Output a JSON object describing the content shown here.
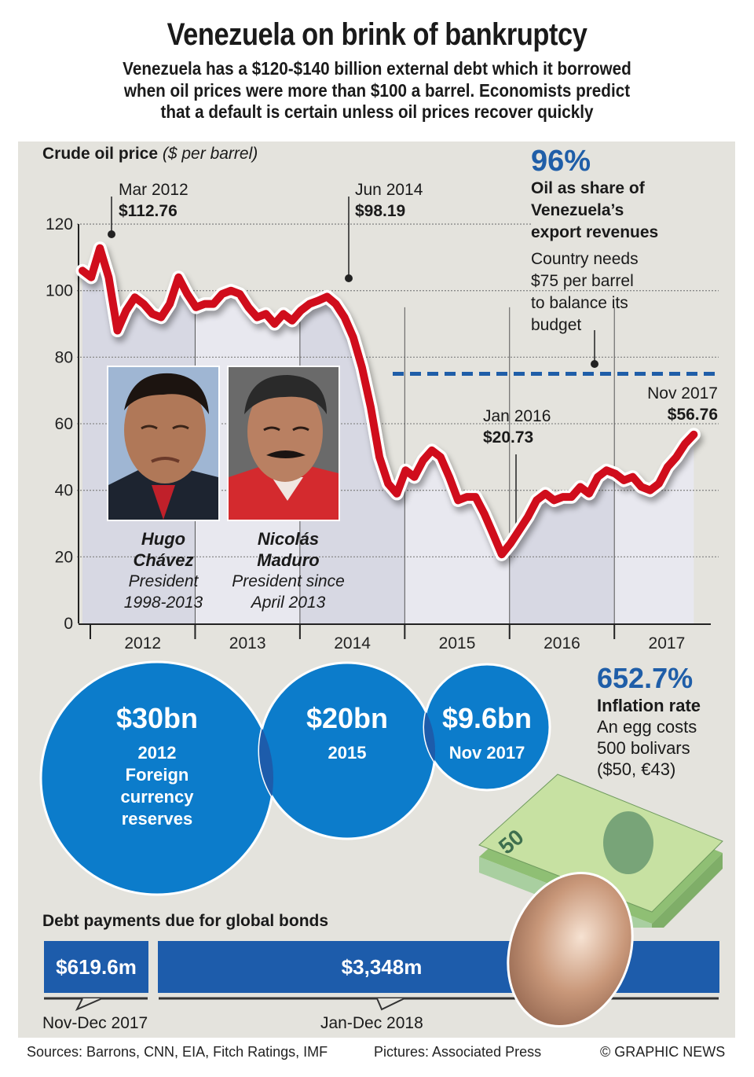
{
  "header": {
    "title": "Venezuela on brink of bankruptcy",
    "subtitle_lines": [
      "Venezuela has a $120-$140 billion external debt which it borrowed",
      "when oil prices were more than $100 a barrel. Economists predict",
      "that a default is certain unless oil prices recover quickly"
    ]
  },
  "chart_data": {
    "type": "line",
    "title": "Crude oil price",
    "title_units": "($ per barrel)",
    "xlabel": "",
    "ylabel": "",
    "ylim": [
      0,
      120
    ],
    "yticks": [
      0,
      20,
      40,
      60,
      80,
      100,
      120
    ],
    "grid": true,
    "x_categories": [
      "2012",
      "2013",
      "2014",
      "2015",
      "2016",
      "2017"
    ],
    "x_start": "Jan 2012",
    "x_end": "Nov 2017",
    "frequency": "monthly",
    "series": [
      {
        "name": "Crude oil price",
        "color": "#d0101a",
        "values": [
          106,
          104,
          112.76,
          104,
          88,
          94,
          98,
          96,
          93,
          92,
          96,
          104,
          99,
          95,
          96,
          96,
          99,
          100,
          99,
          95,
          92,
          93,
          90,
          93,
          91,
          94,
          96,
          97,
          98.19,
          96,
          92,
          86,
          77,
          65,
          50,
          42,
          39,
          46,
          44,
          49,
          52,
          50,
          44,
          37,
          38,
          38,
          33,
          27,
          20.73,
          24,
          28,
          32,
          37,
          39,
          37,
          38,
          38,
          41,
          39,
          44,
          46,
          45,
          43,
          44,
          41,
          40,
          42,
          47,
          50,
          54,
          56.76
        ]
      }
    ],
    "reference_line": {
      "value": 75,
      "start": "Jan 2015",
      "color": "#1f5ea8",
      "style": "dashed",
      "label": "Country needs $75 per barrel to balance its budget"
    },
    "annotations": [
      {
        "date_label": "Mar 2012",
        "value_label": "$112.76",
        "index": 2
      },
      {
        "date_label": "Jun 2014",
        "value_label": "$98.19",
        "index": 28
      },
      {
        "date_label": "Jan 2016",
        "value_label": "$20.73",
        "index": 48
      },
      {
        "date_label": "Nov 2017",
        "value_label": "$56.76",
        "index": 70
      }
    ],
    "presidency_bands": [
      {
        "from_index": 0,
        "to_index": 15,
        "shade": "#d5d6e2"
      },
      {
        "from_index": 15,
        "to_index": 70,
        "shade": "#e8e8ef"
      }
    ]
  },
  "oil_share": {
    "value": "96%",
    "label_lines": [
      "Oil as share of",
      "Venezuela’s",
      "export revenues"
    ],
    "note_lines": [
      "Country needs",
      "$75 per barrel",
      "to balance its",
      "budget"
    ]
  },
  "presidents": [
    {
      "name_lines": [
        "Hugo",
        "Chávez"
      ],
      "role_lines": [
        "President",
        "1998-2013"
      ],
      "photo": "portrait-chavez"
    },
    {
      "name_lines": [
        "Nicolás",
        "Maduro"
      ],
      "role_lines": [
        "President since",
        "April 2013"
      ],
      "photo": "portrait-maduro"
    }
  ],
  "reserves": {
    "title": "Foreign currency reserves",
    "bubbles": [
      {
        "amount": "$30bn",
        "label_lines": [
          "2012",
          "Foreign",
          "currency",
          "reserves"
        ],
        "value_bn": 30
      },
      {
        "amount": "$20bn",
        "label_lines": [
          "2015"
        ],
        "value_bn": 20
      },
      {
        "amount": "$9.6bn",
        "label_lines": [
          "Nov 2017"
        ],
        "value_bn": 9.6
      }
    ]
  },
  "inflation": {
    "value": "652.7%",
    "label": "Inflation rate",
    "note_lines": [
      "An egg costs",
      "500 bolivars",
      "($50, €43)"
    ]
  },
  "debt": {
    "title": "Debt payments due for global bonds",
    "items": [
      {
        "amount": "$619.6m",
        "period": "Nov-Dec 2017",
        "value_m": 619.6
      },
      {
        "amount": "$3,348m",
        "period": "Jan-Dec 2018",
        "value_m": 3348
      }
    ]
  },
  "footer": {
    "sources": "Sources: Barrons, CNN, EIA, Fitch Ratings, IMF",
    "pictures": "Pictures: Associated Press",
    "credit": "© GRAPHIC NEWS"
  },
  "colors": {
    "panel": "#e4e3dd",
    "line": "#d0101a",
    "blue_bubble": "#0c7ccb",
    "blue_dark": "#1d5cab",
    "accent_text": "#1f5ea8"
  }
}
